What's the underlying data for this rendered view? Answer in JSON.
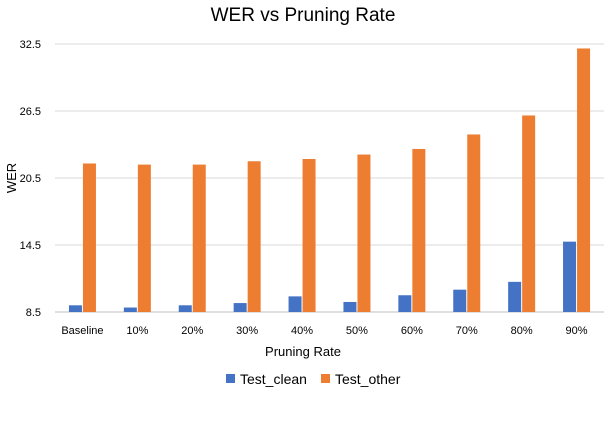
{
  "chart_data": {
    "type": "bar",
    "title": "WER vs Pruning Rate",
    "xlabel": "Pruning Rate",
    "ylabel": "WER",
    "categories": [
      "Baseline",
      "10%",
      "20%",
      "30%",
      "40%",
      "50%",
      "60%",
      "70%",
      "80%",
      "90%"
    ],
    "ylim": [
      8.5,
      32.5
    ],
    "yticks": [
      "8.5",
      "14.5",
      "20.5",
      "26.5",
      "32.5"
    ],
    "grid": true,
    "legend_position": "bottom",
    "series": [
      {
        "name": "Test_clean",
        "color": "#4472C4",
        "values": [
          9.1,
          8.9,
          9.1,
          9.3,
          9.9,
          9.4,
          10.0,
          10.5,
          11.2,
          14.8
        ]
      },
      {
        "name": "Test_other",
        "color": "#ED7D31",
        "values": [
          21.8,
          21.7,
          21.7,
          22.0,
          22.2,
          22.6,
          23.1,
          24.4,
          26.1,
          32.1
        ]
      }
    ]
  }
}
